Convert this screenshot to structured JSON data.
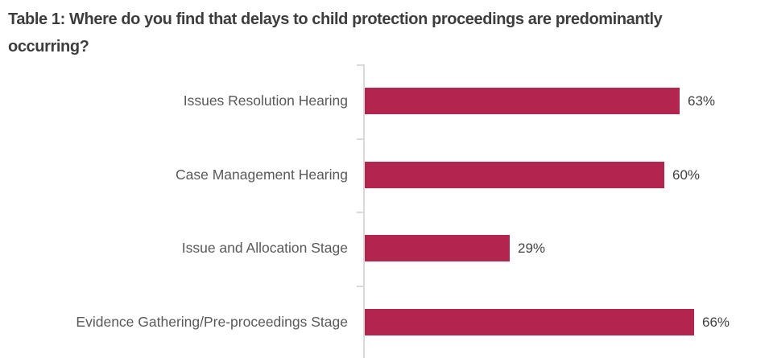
{
  "title": {
    "text": "Table 1: Where do you find that delays to child protection proceedings are predominantly occurring?",
    "lines": [
      "Table 1: Where do you find that delays to child protection proceedings are predominantly",
      "occurring?"
    ]
  },
  "colors": {
    "bar": "#B2254E",
    "axis": "#D9D9D9",
    "title_text": "#3D3D3D",
    "category_text": "#595959",
    "value_text": "#404040",
    "background": "#FFFFFF"
  },
  "chart_data": {
    "type": "bar",
    "orientation": "horizontal",
    "title": "Table 1: Where do you find that delays to child protection proceedings are predominantly occurring?",
    "categories": [
      "Issues Resolution Hearing",
      "Case Management Hearing",
      "Issue and Allocation Stage",
      "Evidence Gathering/Pre-proceedings Stage"
    ],
    "values": [
      63,
      60,
      29,
      66
    ],
    "value_labels": [
      "63%",
      "60%",
      "29%",
      "66%"
    ],
    "unit": "%",
    "xlabel": "",
    "ylabel": "",
    "xlim": [
      0,
      70
    ],
    "grid": false,
    "legend": false,
    "data_label_position": "outside-end"
  }
}
